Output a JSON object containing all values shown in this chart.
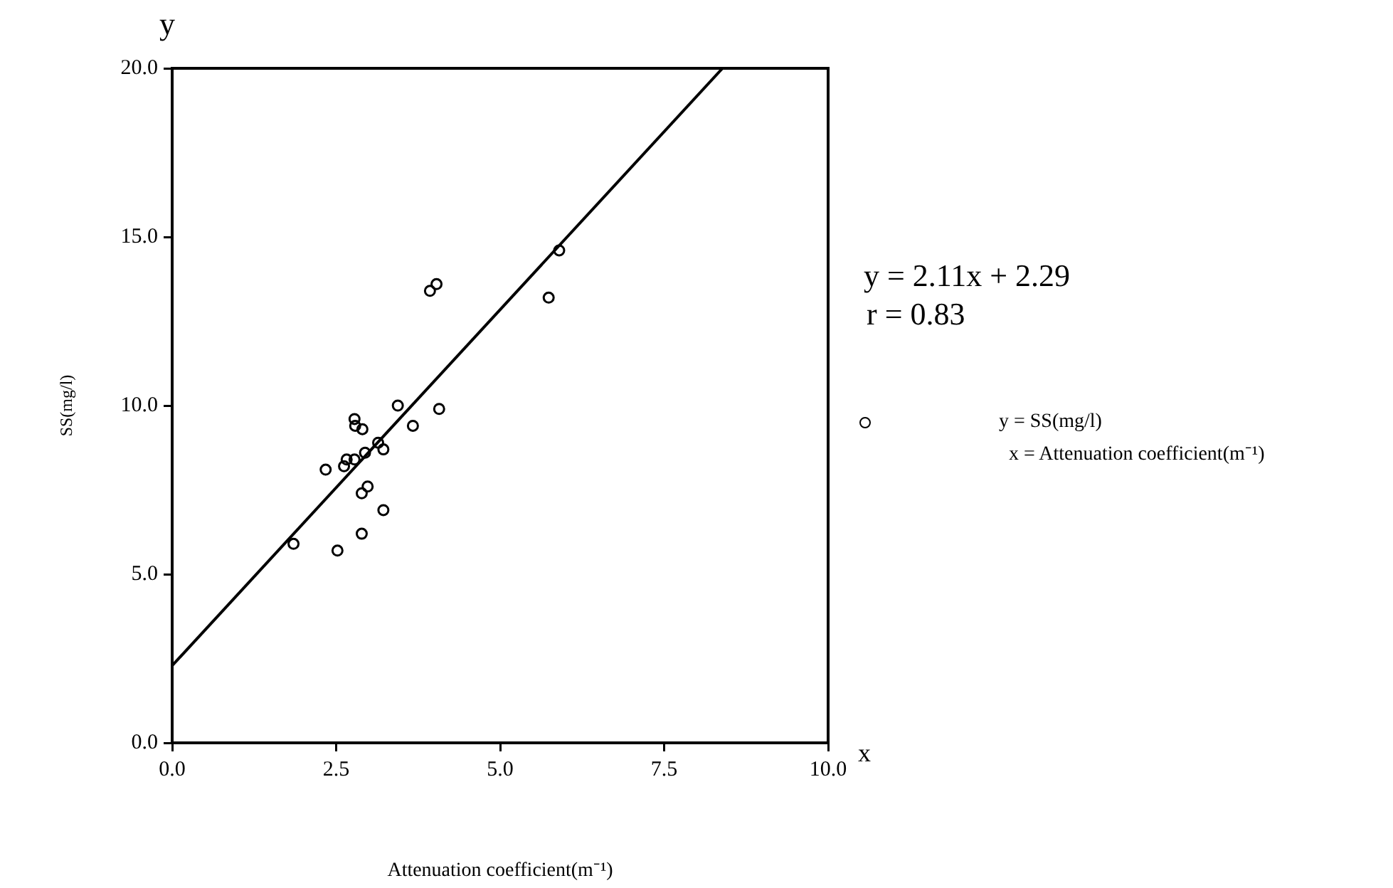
{
  "chart_data": {
    "type": "scatter",
    "xlabel": "Attenuation coefficient(m⁻¹)",
    "ylabel": "SS(mg/l)",
    "xlim": [
      0,
      10
    ],
    "xticks": [
      {
        "value": 0,
        "label": "0.0"
      },
      2.5,
      {
        "value": 5,
        "label": "5.0"
      },
      7.5,
      {
        "value": 10,
        "label": "10.0"
      }
    ],
    "ylim": [
      0,
      20
    ],
    "yticks": [
      {
        "value": 0,
        "label": "0.0"
      },
      {
        "value": 5,
        "label": "5.0"
      },
      {
        "value": 10,
        "label": "10.0"
      },
      {
        "value": 15,
        "label": "15.0"
      },
      {
        "value": 20,
        "label": "20.0"
      }
    ],
    "grid": false,
    "legend": "right",
    "marker": "circle",
    "series": [
      {
        "name": "y = SS(mg/l)",
        "color": "#000000",
        "x": [
          5.9,
          5.74,
          3.93,
          4.03,
          3.44,
          4.07,
          3.67,
          2.78,
          2.79,
          2.9,
          3.14,
          3.22,
          2.94,
          2.78,
          2.66,
          2.62,
          2.34,
          2.98,
          2.89,
          3.22,
          2.89,
          1.85,
          2.52
        ],
        "values": [
          14.6,
          13.2,
          13.4,
          13.6,
          10.0,
          9.9,
          9.4,
          9.6,
          9.4,
          9.3,
          8.9,
          8.7,
          8.6,
          8.4,
          8.4,
          8.2,
          8.1,
          7.6,
          7.4,
          6.9,
          6.2,
          5.9,
          5.7
        ]
      },
      {
        "type": "line",
        "color": "#000000",
        "marker": "none",
        "line_style": "solid",
        "x": [
          0,
          8.39
        ],
        "values": [
          2.29,
          20
        ]
      }
    ],
    "annotations": [
      "y",
      "x",
      "y = 2.11x + 2.29",
      "r = 0.83",
      "x = Attenuation coefficient(m⁻¹)"
    ]
  }
}
